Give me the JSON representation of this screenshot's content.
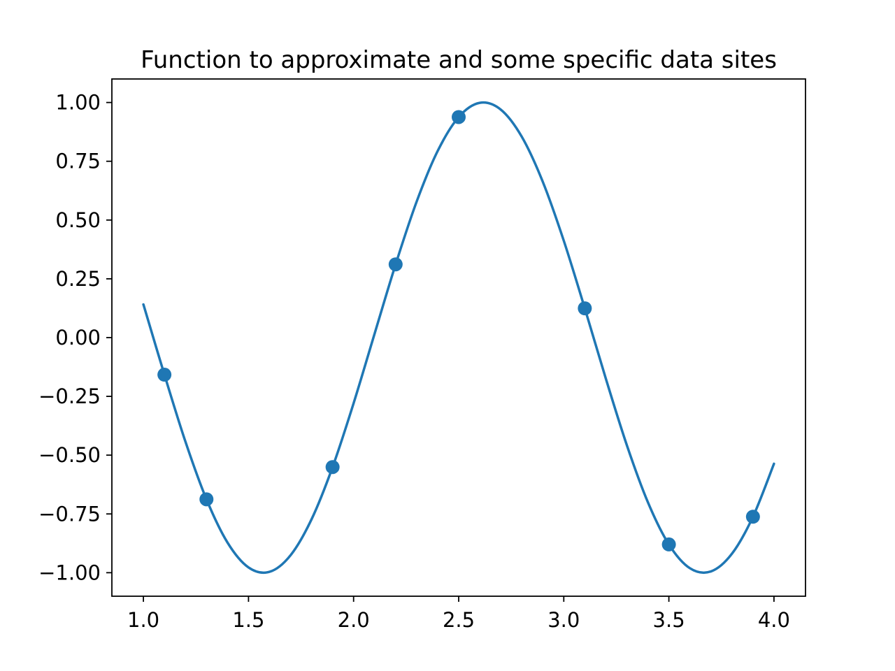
{
  "figure": {
    "background": "#ffffff"
  },
  "chart_data": {
    "type": "line",
    "title": "Function to approximate and some specific data sites",
    "function": "y = sin(3x)",
    "x_range": [
      1.0,
      4.0
    ],
    "xlim": [
      0.85,
      4.15
    ],
    "ylim": [
      -1.1,
      1.1
    ],
    "grid": false,
    "legend": "none",
    "line_color": "#1f77b4",
    "marker_color": "#1f77b4",
    "axis_color": "#000000",
    "x_ticks": {
      "values": [
        1.0,
        1.5,
        2.0,
        2.5,
        3.0,
        3.5,
        4.0
      ],
      "labels": [
        "1.0",
        "1.5",
        "2.0",
        "2.5",
        "3.0",
        "3.5",
        "4.0"
      ]
    },
    "y_ticks": {
      "values": [
        1.0,
        0.75,
        0.5,
        0.25,
        0.0,
        -0.25,
        -0.5,
        -0.75,
        -1.0
      ],
      "labels": [
        "1.00",
        "0.75",
        "0.50",
        "0.25",
        "0.00",
        "−0.25",
        "−0.50",
        "−0.75",
        "−1.00"
      ]
    },
    "curve": {
      "x": [
        1.0,
        1.1,
        1.2,
        1.3,
        1.4,
        1.5,
        1.6,
        1.7,
        1.8,
        1.9,
        2.0,
        2.1,
        2.2,
        2.3,
        2.4,
        2.5,
        2.6,
        2.7,
        2.8,
        2.9,
        3.0,
        3.1,
        3.2,
        3.3,
        3.4,
        3.5,
        3.6,
        3.7,
        3.8,
        3.9,
        4.0
      ],
      "y": [
        0.1411,
        -0.1577,
        -0.4425,
        -0.6878,
        -0.8716,
        -0.9775,
        -0.9962,
        -0.9258,
        -0.7728,
        -0.5507,
        -0.2794,
        0.0168,
        0.3115,
        0.5784,
        0.7937,
        0.938,
        0.9985,
        0.9699,
        0.8546,
        0.663,
        0.4121,
        0.1244,
        -0.1743,
        -0.4575,
        -0.6999,
        -0.8797,
        -0.9809,
        -0.9946,
        -0.9193,
        -0.762,
        -0.5366
      ]
    },
    "data_sites": {
      "x": [
        1.1,
        1.3,
        1.9,
        2.2,
        2.5,
        3.1,
        3.5,
        3.9
      ],
      "y": [
        -0.1577,
        -0.6878,
        -0.5507,
        0.3115,
        0.938,
        0.1245,
        -0.8797,
        -0.762
      ]
    }
  }
}
